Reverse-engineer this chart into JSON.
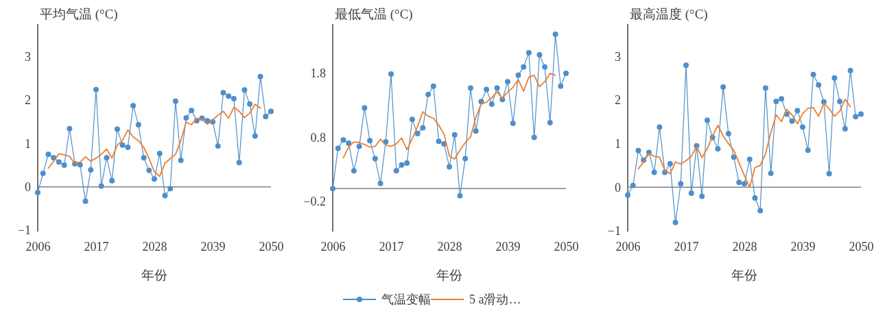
{
  "chart_data": [
    {
      "type": "line",
      "title": "平均气温 (°C)",
      "xlabel": "年份",
      "x": [
        2006,
        2007,
        2008,
        2009,
        2010,
        2011,
        2012,
        2013,
        2014,
        2015,
        2016,
        2017,
        2018,
        2019,
        2020,
        2021,
        2022,
        2023,
        2024,
        2025,
        2026,
        2027,
        2028,
        2029,
        2030,
        2031,
        2032,
        2033,
        2034,
        2035,
        2036,
        2037,
        2038,
        2039,
        2040,
        2041,
        2042,
        2043,
        2044,
        2045,
        2046,
        2047,
        2048,
        2049,
        2050
      ],
      "xlim": [
        2006,
        2050
      ],
      "xticks": [
        2006,
        2017,
        2028,
        2039,
        2050
      ],
      "ylim": [
        -1.03,
        3.75
      ],
      "yticks": [
        -1,
        0,
        1,
        2,
        3
      ],
      "legend": false,
      "series": [
        {
          "color": "#4e8fcb",
          "marker": "circle",
          "values": [
            -0.13,
            0.31,
            0.75,
            0.67,
            0.57,
            0.5,
            1.34,
            0.53,
            0.51,
            -0.33,
            0.39,
            2.24,
            0.02,
            0.67,
            0.14,
            1.33,
            0.96,
            0.91,
            1.87,
            1.43,
            0.67,
            0.38,
            0.18,
            0.77,
            -0.2,
            -0.04,
            1.97,
            0.61,
            1.59,
            1.76,
            1.52,
            1.58,
            1.52,
            1.5,
            0.94,
            2.17,
            2.09,
            2.03,
            0.56,
            2.23,
            1.91,
            1.17,
            2.54,
            1.62,
            1.74
          ]
        },
        {
          "color": "#ed7d31",
          "marker": "none",
          "x": [
            2008,
            2009,
            2010,
            2011,
            2012,
            2013,
            2014,
            2015,
            2016,
            2017,
            2018,
            2019,
            2020,
            2021,
            2022,
            2023,
            2024,
            2025,
            2026,
            2027,
            2028,
            2029,
            2030,
            2031,
            2032,
            2033,
            2034,
            2035,
            2036,
            2037,
            2038,
            2039,
            2040,
            2041,
            2042,
            2043,
            2044,
            2045,
            2046,
            2047,
            2048
          ],
          "values": [
            0.43,
            0.59,
            0.76,
            0.74,
            0.7,
            0.54,
            0.57,
            0.69,
            0.59,
            0.66,
            0.75,
            0.87,
            0.66,
            0.96,
            1.07,
            1.31,
            1.15,
            1.06,
            0.91,
            0.65,
            0.35,
            0.24,
            0.54,
            0.65,
            0.75,
            1.07,
            1.49,
            1.43,
            1.58,
            1.55,
            1.44,
            1.54,
            1.65,
            1.74,
            1.58,
            1.83,
            1.74,
            1.59,
            1.7,
            1.9,
            1.81
          ]
        }
      ]
    },
    {
      "type": "line",
      "title": "最低气温 (°C)",
      "xlabel": "年份",
      "x": [
        2006,
        2007,
        2008,
        2009,
        2010,
        2011,
        2012,
        2013,
        2014,
        2015,
        2016,
        2017,
        2018,
        2019,
        2020,
        2021,
        2022,
        2023,
        2024,
        2025,
        2026,
        2027,
        2028,
        2029,
        2030,
        2031,
        2032,
        2033,
        2034,
        2035,
        2036,
        2037,
        2038,
        2039,
        2040,
        2041,
        2042,
        2043,
        2044,
        2045,
        2046,
        2047,
        2048,
        2049,
        2050
      ],
      "xlim": [
        2006,
        2050
      ],
      "xticks": [
        2006,
        2017,
        2028,
        2039,
        2050
      ],
      "ylim": [
        -0.67,
        2.57
      ],
      "yticks": [
        -0.2,
        0.8,
        1.8
      ],
      "legend": "bottom",
      "series": [
        {
          "name": "气温变幅",
          "color": "#4e8fcb",
          "marker": "circle",
          "values": [
            0,
            0.63,
            0.76,
            0.71,
            0.28,
            0.66,
            1.26,
            0.75,
            0.47,
            0.08,
            0.73,
            1.79,
            0.28,
            0.37,
            0.4,
            1.08,
            0.86,
            0.95,
            1.47,
            1.6,
            0.74,
            0.7,
            0.34,
            0.84,
            -0.11,
            0.47,
            1.57,
            0.9,
            1.36,
            1.55,
            1.32,
            1.57,
            1.39,
            1.67,
            1.02,
            1.77,
            1.9,
            2.12,
            0.8,
            2.09,
            1.9,
            1.03,
            2.41,
            1.6,
            1.8
          ]
        },
        {
          "name": "5 a滑动…",
          "color": "#ed7d31",
          "marker": "none",
          "x": [
            2008,
            2009,
            2010,
            2011,
            2012,
            2013,
            2014,
            2015,
            2016,
            2017,
            2018,
            2019,
            2020,
            2021,
            2022,
            2023,
            2024,
            2025,
            2026,
            2027,
            2028,
            2029,
            2030,
            2031,
            2032,
            2033,
            2034,
            2035,
            2036,
            2037,
            2038,
            2039,
            2040,
            2041,
            2042,
            2043,
            2044,
            2045,
            2046,
            2047,
            2048
          ],
          "values": [
            0.48,
            0.65,
            0.73,
            0.72,
            0.69,
            0.65,
            0.66,
            0.77,
            0.68,
            0.66,
            0.7,
            0.79,
            0.61,
            0.78,
            0.97,
            1.2,
            1.13,
            1.1,
            0.99,
            0.85,
            0.51,
            0.46,
            0.6,
            0.72,
            0.81,
            1.11,
            1.32,
            1.35,
            1.42,
            1.51,
            1.41,
            1.51,
            1.58,
            1.7,
            1.52,
            1.74,
            1.77,
            1.59,
            1.67,
            1.8,
            1.77
          ]
        }
      ]
    },
    {
      "type": "line",
      "title": "最高温度 (°C)",
      "xlabel": "年份",
      "x": [
        2006,
        2007,
        2008,
        2009,
        2010,
        2011,
        2012,
        2013,
        2014,
        2015,
        2016,
        2017,
        2018,
        2019,
        2020,
        2021,
        2022,
        2023,
        2024,
        2025,
        2026,
        2027,
        2028,
        2029,
        2030,
        2031,
        2032,
        2033,
        2034,
        2035,
        2036,
        2037,
        2038,
        2039,
        2040,
        2041,
        2042,
        2043,
        2044,
        2045,
        2046,
        2047,
        2048,
        2049,
        2050
      ],
      "xlim": [
        2006,
        2050
      ],
      "xticks": [
        2006,
        2017,
        2028,
        2039,
        2050
      ],
      "ylim": [
        -1.02,
        3.75
      ],
      "yticks": [
        -1,
        0,
        1,
        2,
        3
      ],
      "legend": false,
      "series": [
        {
          "color": "#4e8fcb",
          "marker": "circle",
          "values": [
            -0.18,
            0.04,
            0.84,
            0.62,
            0.8,
            0.34,
            1.38,
            0.34,
            0.54,
            -0.81,
            0.08,
            2.8,
            -0.14,
            0.95,
            -0.21,
            1.54,
            1.14,
            0.88,
            2.3,
            1.23,
            0.69,
            0.11,
            0.08,
            0.64,
            -0.25,
            -0.54,
            2.28,
            0.32,
            1.97,
            2.03,
            1.68,
            1.52,
            1.76,
            1.38,
            0.85,
            2.59,
            2.35,
            1.96,
            0.31,
            2.51,
            1.97,
            1.34,
            2.68,
            1.62,
            1.68
          ]
        },
        {
          "color": "#ed7d31",
          "marker": "none",
          "x": [
            2008,
            2009,
            2010,
            2011,
            2012,
            2013,
            2014,
            2015,
            2016,
            2017,
            2018,
            2019,
            2020,
            2021,
            2022,
            2023,
            2024,
            2025,
            2026,
            2027,
            2028,
            2029,
            2030,
            2031,
            2032,
            2033,
            2034,
            2035,
            2036,
            2037,
            2038,
            2039,
            2040,
            2041,
            2042,
            2043,
            2044,
            2045,
            2046,
            2047,
            2048
          ],
          "values": [
            0.42,
            0.58,
            0.77,
            0.71,
            0.69,
            0.39,
            0.31,
            0.58,
            0.53,
            0.61,
            0.71,
            0.94,
            0.68,
            0.88,
            1.18,
            1.42,
            1.18,
            1.0,
            0.85,
            0.56,
            0.27,
            0,
            0.45,
            0.5,
            0.77,
            1.26,
            1.66,
            1.51,
            1.79,
            1.66,
            1.46,
            1.69,
            1.81,
            1.83,
            1.63,
            1.93,
            1.8,
            1.63,
            1.75,
            2.02,
            1.85
          ]
        }
      ]
    }
  ]
}
